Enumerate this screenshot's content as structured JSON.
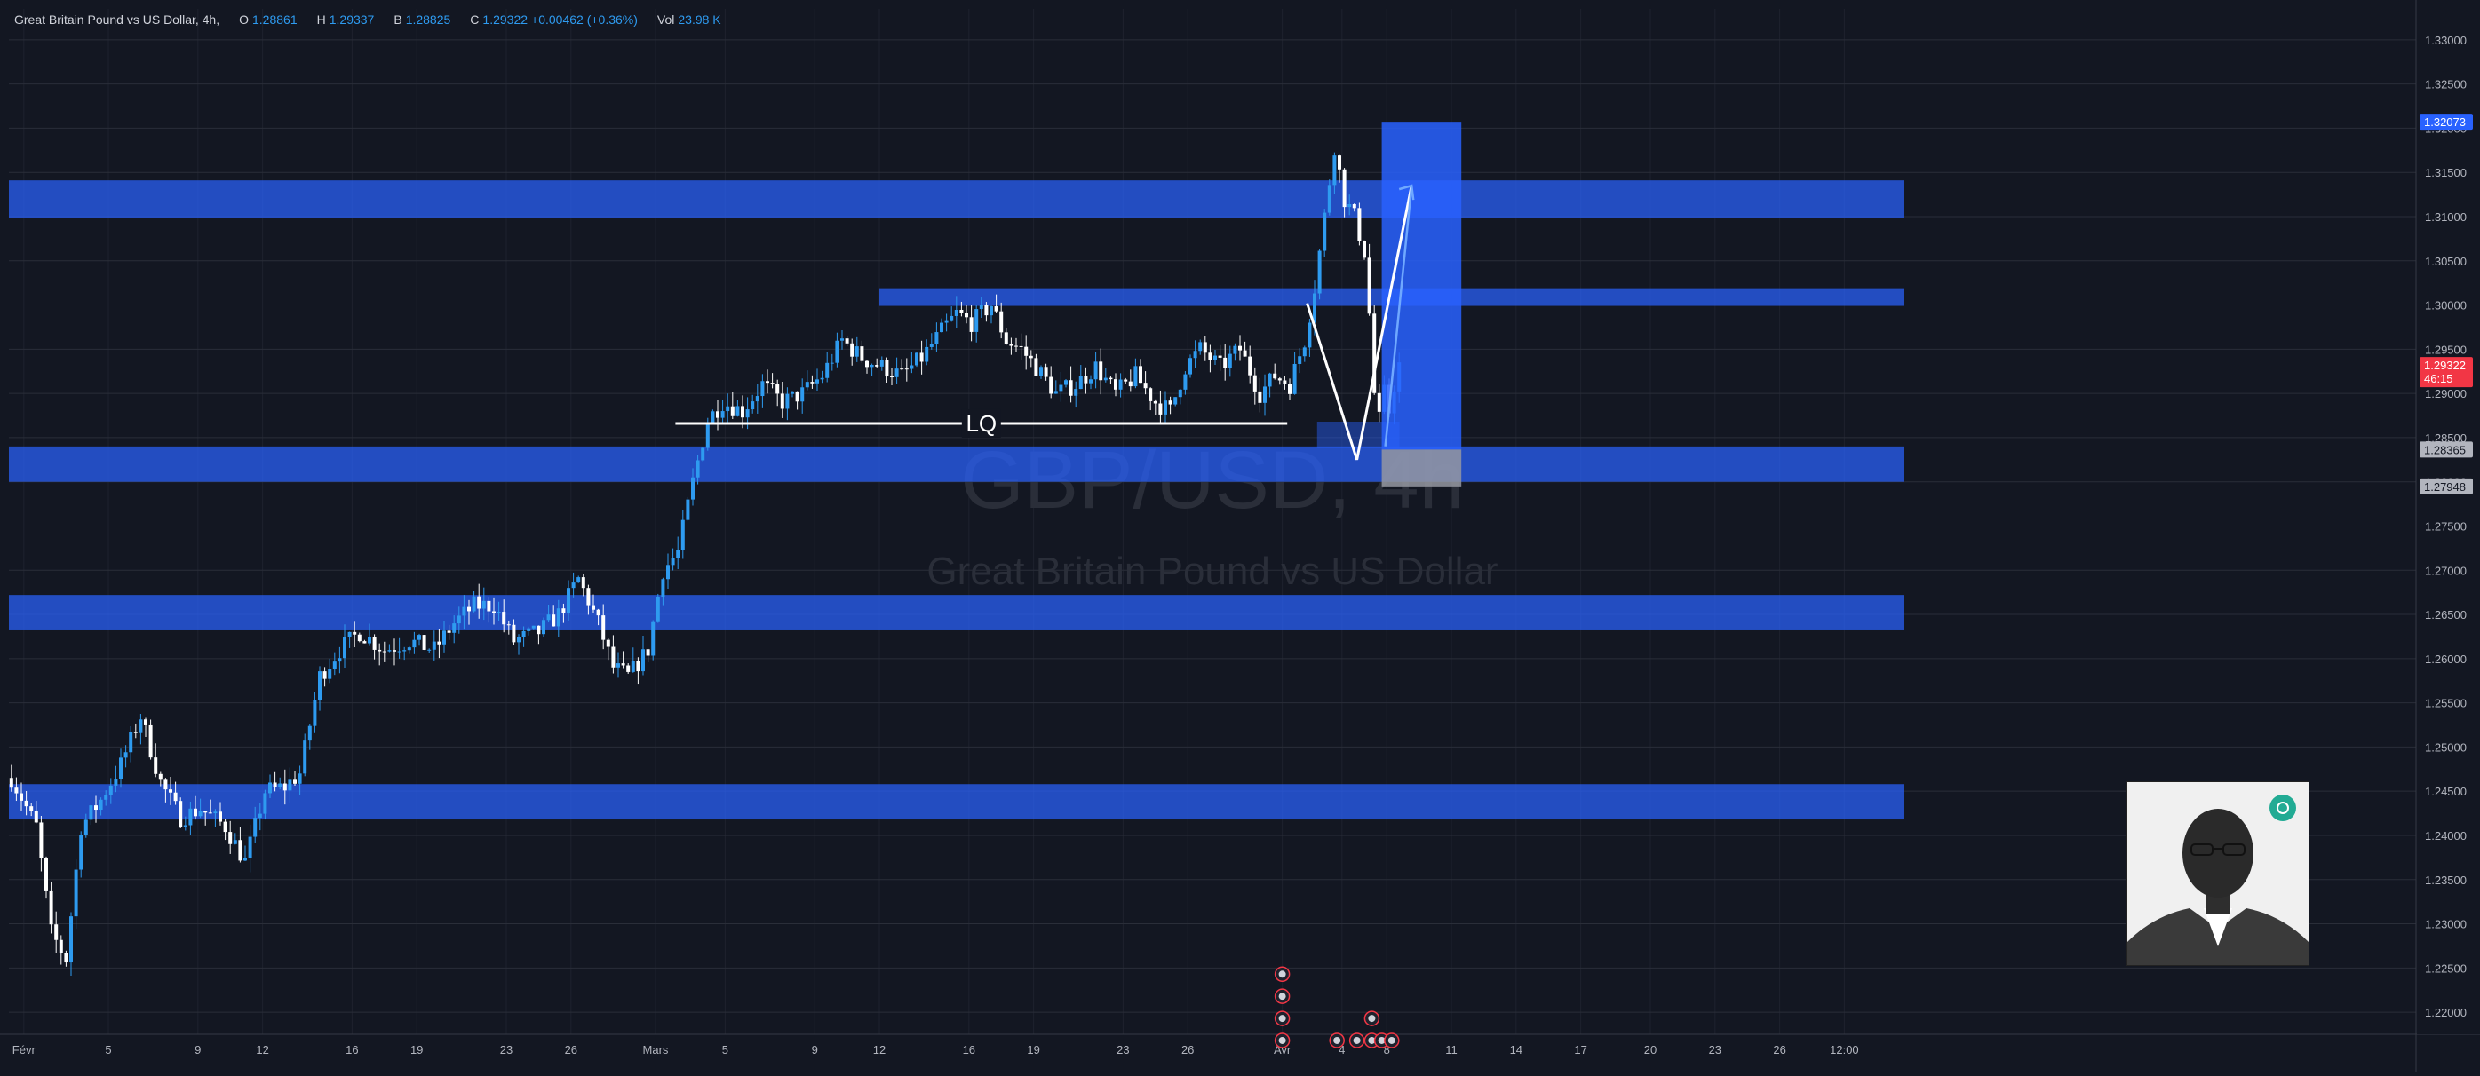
{
  "header": {
    "symbol_title": "Great Britain Pound vs US Dollar, 4h,",
    "o_label": "O",
    "o_value": "1.28861",
    "h_label": "H",
    "h_value": "1.29337",
    "b_label": "B",
    "b_value": "1.28825",
    "c_label": "C",
    "c_value": "1.29322",
    "change_value": "+0.00462 (+0.36%)",
    "vol_label": "Vol",
    "vol_value": "23.98 K"
  },
  "watermark": {
    "symbol": "GBP/USD, 4h",
    "name": "Great Britain Pound vs US Dollar"
  },
  "colors": {
    "background": "#131722",
    "grid": "#2a2e39",
    "up": "#2e9bf0",
    "down": "#ffffff",
    "zone": "#2962ff",
    "price_tag_current": "#f23645",
    "price_tag_blue": "#2962ff",
    "price_tag_grey": "#b2b5be"
  },
  "chart_data": {
    "type": "candlestick",
    "symbol": "GBP/USD",
    "interval": "4h",
    "y_ticks": [
      "1.33000",
      "1.32500",
      "1.32000",
      "1.31500",
      "1.31000",
      "1.30500",
      "1.30000",
      "1.29500",
      "1.29000",
      "1.28500",
      "1.28000",
      "1.27500",
      "1.27000",
      "1.26500",
      "1.26000",
      "1.25500",
      "1.25000",
      "1.24500",
      "1.24000",
      "1.23500",
      "1.23000",
      "1.22500",
      "1.22000"
    ],
    "y_tick_values": [
      1.33,
      1.325,
      1.32,
      1.315,
      1.31,
      1.305,
      1.3,
      1.295,
      1.29,
      1.285,
      1.28,
      1.275,
      1.27,
      1.265,
      1.26,
      1.255,
      1.25,
      1.245,
      1.24,
      1.235,
      1.23,
      1.225,
      1.22
    ],
    "ylim": [
      1.2175,
      1.3335
    ],
    "bar_count": 302,
    "x_ticks": [
      {
        "label": "Févr",
        "bar": 3
      },
      {
        "label": "5",
        "bar": 20
      },
      {
        "label": "9",
        "bar": 38
      },
      {
        "label": "12",
        "bar": 51
      },
      {
        "label": "16",
        "bar": 69
      },
      {
        "label": "19",
        "bar": 82
      },
      {
        "label": "23",
        "bar": 100
      },
      {
        "label": "26",
        "bar": 113
      },
      {
        "label": "Mars",
        "bar": 130
      },
      {
        "label": "5",
        "bar": 144
      },
      {
        "label": "9",
        "bar": 162
      },
      {
        "label": "12",
        "bar": 175
      },
      {
        "label": "16",
        "bar": 193
      },
      {
        "label": "19",
        "bar": 206
      },
      {
        "label": "23",
        "bar": 224
      },
      {
        "label": "26",
        "bar": 237
      },
      {
        "label": "Avr",
        "bar": 256
      },
      {
        "label": "4",
        "bar": 268
      },
      {
        "label": "8",
        "bar": 277
      },
      {
        "label": "11",
        "bar": 290
      },
      {
        "label": "14",
        "bar": 303
      },
      {
        "label": "17",
        "bar": 316
      },
      {
        "label": "20",
        "bar": 330
      },
      {
        "label": "23",
        "bar": 343
      },
      {
        "label": "26",
        "bar": 356
      },
      {
        "label": "12:00",
        "bar": 369
      }
    ],
    "price_path": [
      [
        0,
        1.2465
      ],
      [
        5,
        1.241
      ],
      [
        8,
        1.229
      ],
      [
        11,
        1.226
      ],
      [
        14,
        1.241
      ],
      [
        18,
        1.244
      ],
      [
        22,
        1.248
      ],
      [
        26,
        1.2535
      ],
      [
        30,
        1.246
      ],
      [
        34,
        1.242
      ],
      [
        38,
        1.243
      ],
      [
        43,
        1.241
      ],
      [
        47,
        1.237
      ],
      [
        51,
        1.245
      ],
      [
        55,
        1.2455
      ],
      [
        58,
        1.247
      ],
      [
        62,
        1.258
      ],
      [
        66,
        1.261
      ],
      [
        70,
        1.263
      ],
      [
        75,
        1.261
      ],
      [
        80,
        1.262
      ],
      [
        85,
        1.261
      ],
      [
        89,
        1.264
      ],
      [
        93,
        1.266
      ],
      [
        97,
        1.266
      ],
      [
        101,
        1.262
      ],
      [
        106,
        1.263
      ],
      [
        110,
        1.265
      ],
      [
        114,
        1.269
      ],
      [
        118,
        1.264
      ],
      [
        121,
        1.259
      ],
      [
        124,
        1.258
      ],
      [
        128,
        1.261
      ],
      [
        131,
        1.27
      ],
      [
        134,
        1.272
      ],
      [
        137,
        1.28
      ],
      [
        140,
        1.287
      ],
      [
        143,
        1.289
      ],
      [
        147,
        1.288
      ],
      [
        151,
        1.291
      ],
      [
        155,
        1.289
      ],
      [
        159,
        1.29
      ],
      [
        163,
        1.292
      ],
      [
        167,
        1.296
      ],
      [
        171,
        1.294
      ],
      [
        175,
        1.293
      ],
      [
        179,
        1.292
      ],
      [
        183,
        1.294
      ],
      [
        187,
        1.297
      ],
      [
        190,
        1.299
      ],
      [
        193,
        1.298
      ],
      [
        197,
        1.3
      ],
      [
        200,
        1.296
      ],
      [
        203,
        1.295
      ],
      [
        206,
        1.293
      ],
      [
        210,
        1.29
      ],
      [
        214,
        1.291
      ],
      [
        218,
        1.293
      ],
      [
        222,
        1.29
      ],
      [
        226,
        1.292
      ],
      [
        230,
        1.289
      ],
      [
        233,
        1.288
      ],
      [
        236,
        1.293
      ],
      [
        239,
        1.295
      ],
      [
        243,
        1.293
      ],
      [
        247,
        1.295
      ],
      [
        251,
        1.29
      ],
      [
        254,
        1.292
      ],
      [
        257,
        1.291
      ],
      [
        260,
        1.296
      ],
      [
        262,
        1.302
      ],
      [
        264,
        1.31
      ],
      [
        266,
        1.318
      ],
      [
        268,
        1.312
      ],
      [
        270,
        1.31
      ],
      [
        272,
        1.306
      ],
      [
        273,
        1.299
      ],
      [
        274,
        1.29
      ],
      [
        275,
        1.287
      ],
      [
        276,
        1.29
      ],
      [
        277,
        1.288
      ],
      [
        278,
        1.291
      ],
      [
        279,
        1.2932
      ]
    ],
    "zones": [
      {
        "low": 1.3099,
        "high": 1.3141,
        "from_bar": 0,
        "to_bar": 381
      },
      {
        "low": 1.2999,
        "high": 1.3019,
        "from_bar": 175,
        "to_bar": 381
      },
      {
        "low": 1.28,
        "high": 1.284,
        "from_bar": 0,
        "to_bar": 381
      },
      {
        "low": 1.2632,
        "high": 1.2672,
        "from_bar": 0,
        "to_bar": 381
      },
      {
        "low": 1.2418,
        "high": 1.2458,
        "from_bar": 0,
        "to_bar": 381
      }
    ],
    "liquidity_line": {
      "label": "LQ",
      "price": 1.2866,
      "from_bar": 134,
      "to_bar": 257
    },
    "projection": {
      "points": [
        [
          261,
          1.3002
        ],
        [
          271,
          1.2825
        ],
        [
          282,
          1.3135
        ]
      ]
    },
    "position_box": {
      "target": 1.32073,
      "entry": 1.28365,
      "stop": 1.27948,
      "from_bar": 276,
      "to_bar": 292
    },
    "price_tags": [
      {
        "price": 1.32073,
        "label": "1.32073",
        "kind": "blue"
      },
      {
        "price": 1.29322,
        "label": "1.29322",
        "sub": "46:15",
        "kind": "current"
      },
      {
        "price": 1.28365,
        "label": "1.28365",
        "kind": "grey"
      },
      {
        "price": 1.27948,
        "label": "1.27948",
        "kind": "grey"
      }
    ],
    "event_markers": [
      {
        "bar": 256,
        "price": 1.2243
      },
      {
        "bar": 256,
        "price": 1.2218
      },
      {
        "bar": 256,
        "price": 1.2193
      },
      {
        "bar": 256,
        "price": 1.2168
      },
      {
        "bar": 274,
        "price": 1.2193
      },
      {
        "bar": 267,
        "price": 1.2168
      },
      {
        "bar": 271,
        "price": 1.2168
      },
      {
        "bar": 274,
        "price": 1.2168
      },
      {
        "bar": 276,
        "price": 1.2168
      },
      {
        "bar": 278,
        "price": 1.2168
      }
    ]
  }
}
